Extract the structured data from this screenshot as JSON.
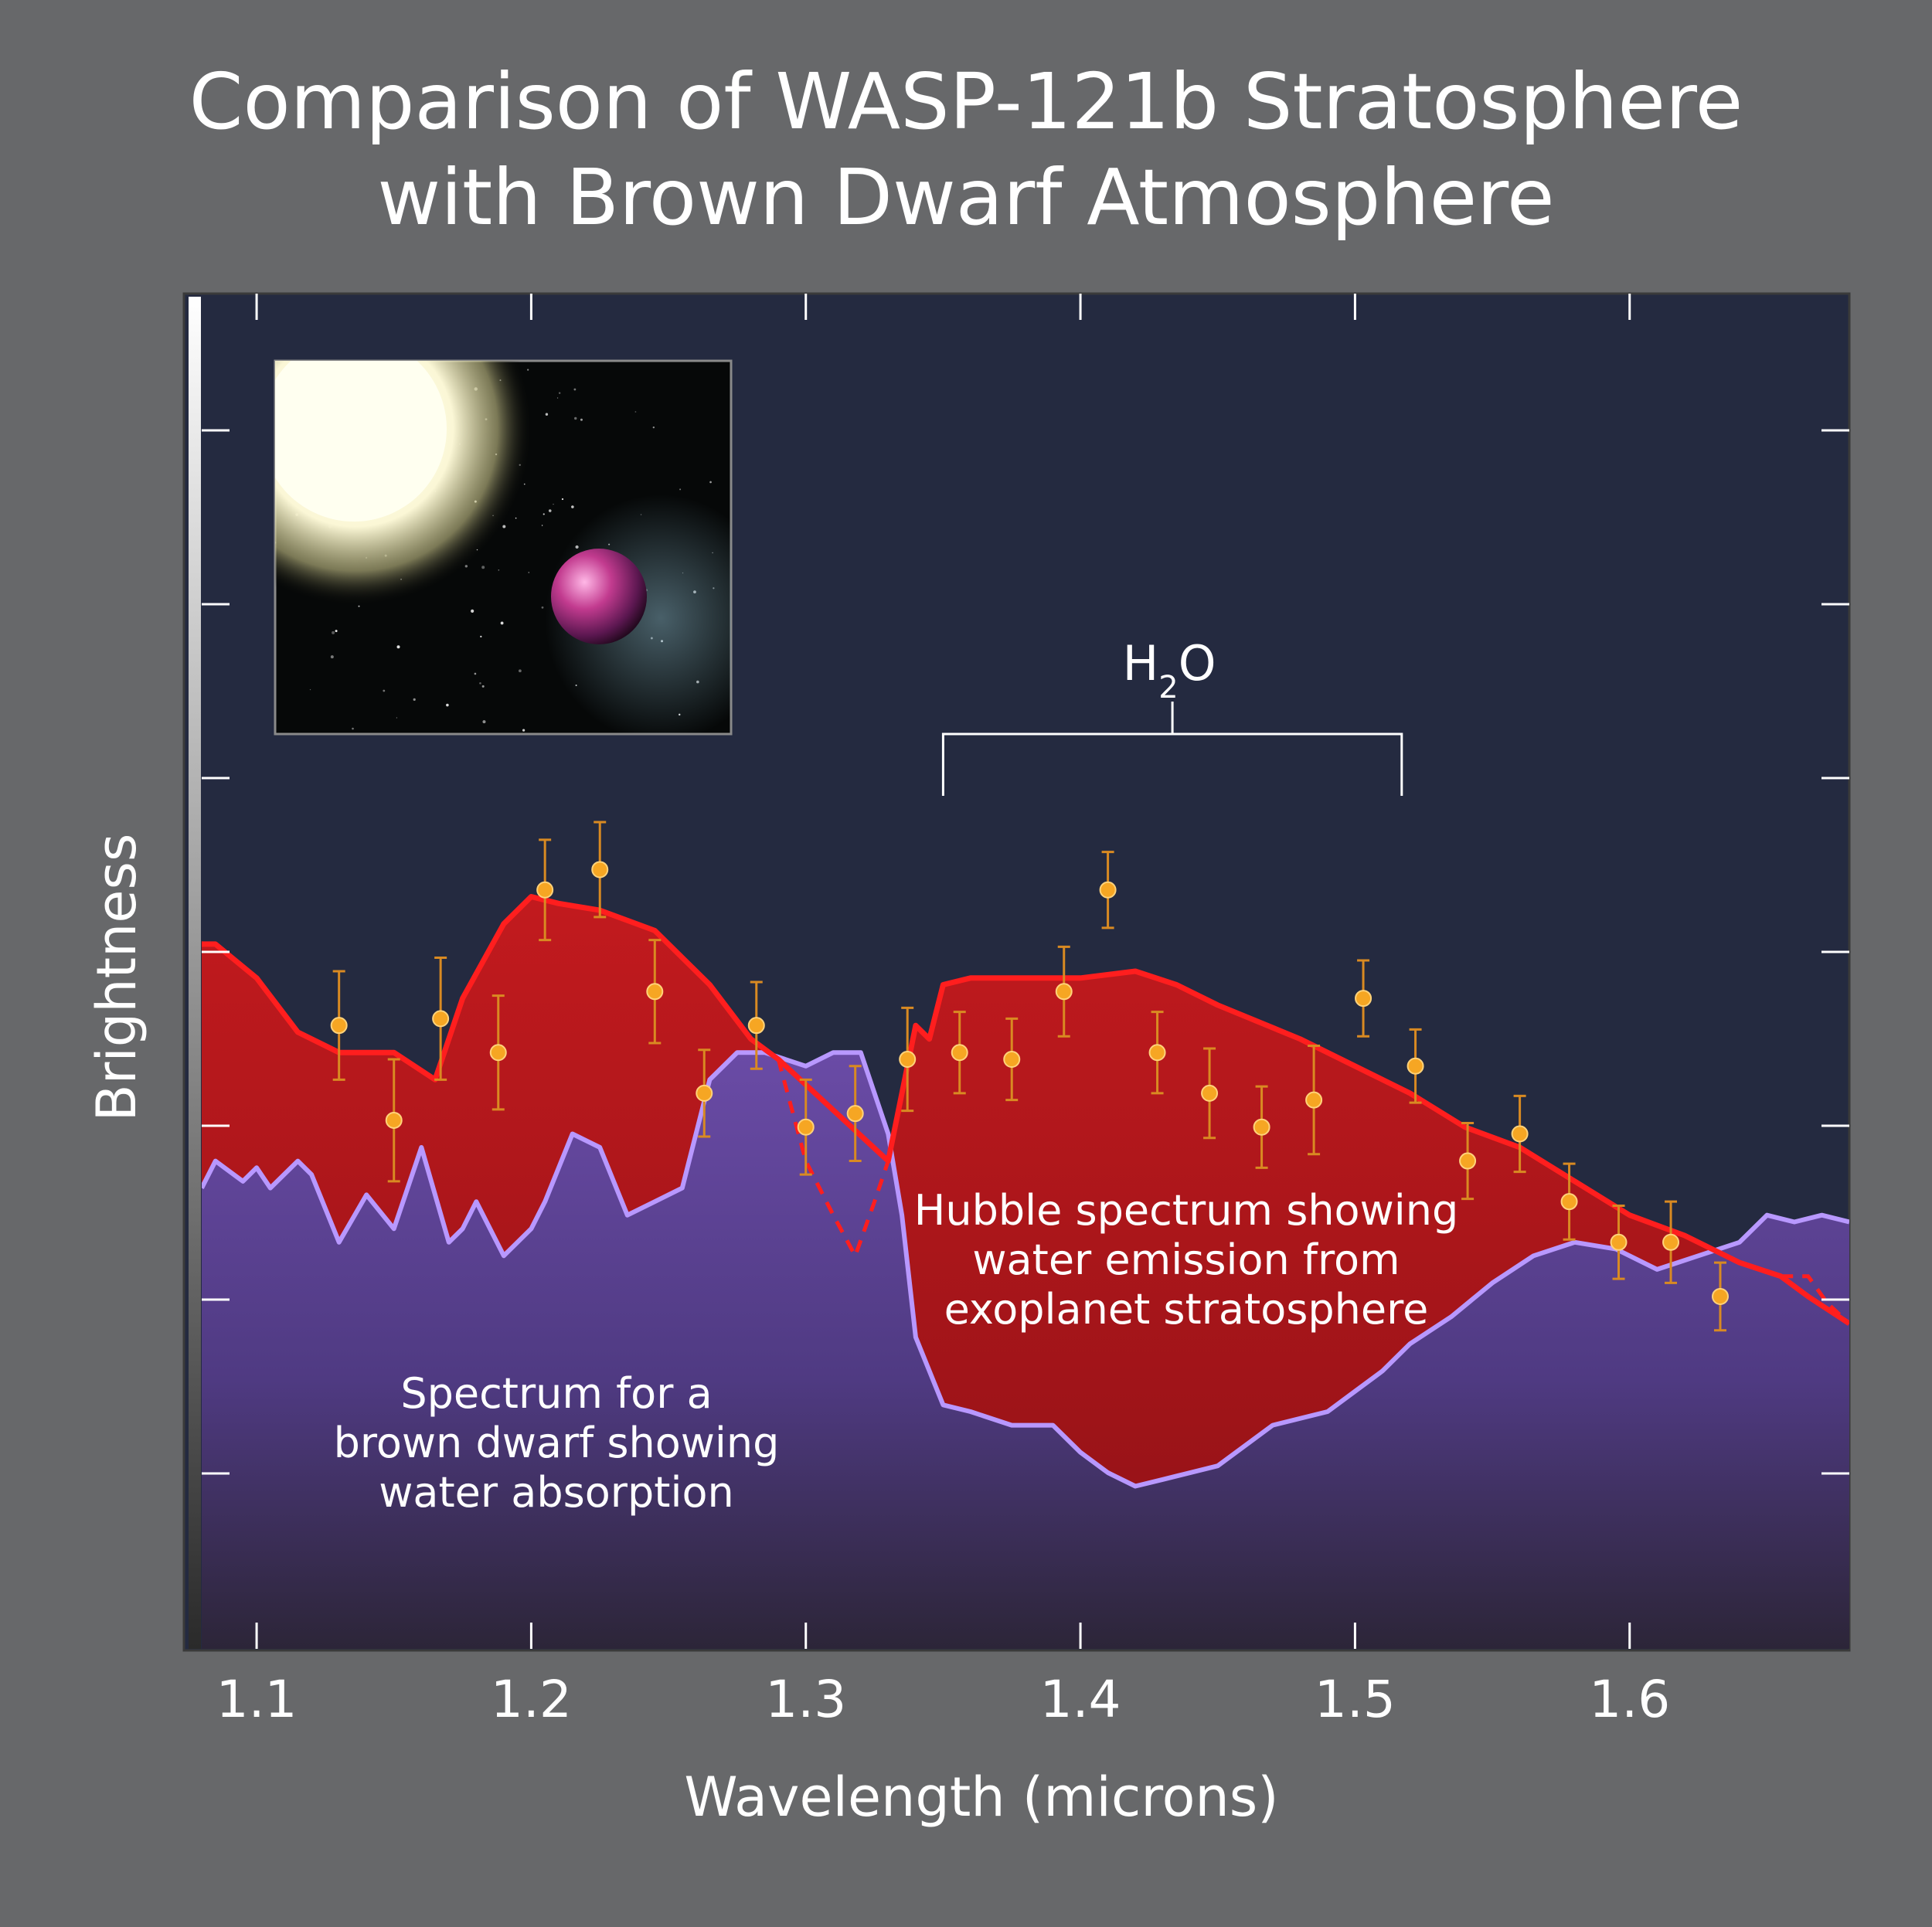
{
  "title_line1": "Comparison of WASP-121b Stratosphere",
  "title_line2": "with Brown Dwarf Atmosphere",
  "colors": {
    "page_bg": "#67686a",
    "plot_bg": "#242a40",
    "exoplanet_fill": "#b01419",
    "exoplanet_line": "#ff1e1e",
    "brown_dwarf_fill": "#5d4595",
    "brown_dwarf_line": "#b898ff",
    "data_point": "#f6a623",
    "error_bar": "#d98a22"
  },
  "chart_data": {
    "type": "area",
    "title": "Comparison of WASP-121b Stratosphere with Brown Dwarf Atmosphere",
    "xlabel": "Wavelength (microns)",
    "ylabel": "Brightness",
    "xlim": [
      1.08,
      1.68
    ],
    "ylim": [
      0,
      10
    ],
    "x_ticks": [
      "1.1",
      "1.2",
      "1.3",
      "1.4",
      "1.5",
      "1.6"
    ],
    "grid": false,
    "annotation": {
      "text_main": "H",
      "text_sub": "2",
      "text_tail": "O",
      "x_start": 1.35,
      "x_end": 1.517
    },
    "labels": {
      "exoplanet": [
        "Hubble spectrum showing",
        "water emission from",
        "exoplanet stratosphere"
      ],
      "brown_dwarf": [
        "Spectrum for a",
        "brown dwarf showing",
        "water absorption"
      ]
    },
    "series": [
      {
        "name": "Hubble spectrum showing water emission from exoplanet stratosphere",
        "style": "filled area, red",
        "x": [
          1.08,
          1.085,
          1.1,
          1.115,
          1.13,
          1.15,
          1.165,
          1.175,
          1.19,
          1.2,
          1.21,
          1.225,
          1.245,
          1.265,
          1.28,
          1.29,
          1.33,
          1.34,
          1.345,
          1.35,
          1.36,
          1.375,
          1.4,
          1.42,
          1.435,
          1.45,
          1.48,
          1.5,
          1.52,
          1.54,
          1.56,
          1.58,
          1.6,
          1.62,
          1.64,
          1.655,
          1.665,
          1.68
        ],
        "y": [
          5.2,
          5.2,
          4.95,
          4.55,
          4.4,
          4.4,
          4.2,
          4.8,
          5.35,
          5.55,
          5.5,
          5.45,
          5.3,
          4.9,
          4.5,
          4.35,
          3.6,
          4.6,
          4.5,
          4.9,
          4.95,
          4.95,
          4.95,
          5.0,
          4.9,
          4.75,
          4.5,
          4.3,
          4.1,
          3.85,
          3.7,
          3.45,
          3.2,
          3.05,
          2.85,
          2.75,
          2.6,
          2.4
        ]
      },
      {
        "name": "Spectrum for a brown dwarf showing water absorption",
        "style": "filled area, purple",
        "x": [
          1.08,
          1.085,
          1.095,
          1.1,
          1.105,
          1.115,
          1.12,
          1.13,
          1.14,
          1.15,
          1.16,
          1.17,
          1.175,
          1.18,
          1.19,
          1.2,
          1.205,
          1.215,
          1.225,
          1.235,
          1.245,
          1.255,
          1.265,
          1.275,
          1.285,
          1.3,
          1.31,
          1.32,
          1.33,
          1.335,
          1.34,
          1.35,
          1.36,
          1.375,
          1.39,
          1.4,
          1.41,
          1.42,
          1.43,
          1.45,
          1.47,
          1.49,
          1.5,
          1.51,
          1.52,
          1.535,
          1.55,
          1.565,
          1.58,
          1.595,
          1.61,
          1.625,
          1.64,
          1.65,
          1.66,
          1.67,
          1.68
        ],
        "y": [
          3.4,
          3.6,
          3.45,
          3.55,
          3.4,
          3.6,
          3.5,
          3.0,
          3.35,
          3.1,
          3.7,
          3.0,
          3.1,
          3.3,
          2.9,
          3.1,
          3.3,
          3.8,
          3.7,
          3.2,
          3.3,
          3.4,
          4.2,
          4.4,
          4.4,
          4.3,
          4.4,
          4.4,
          3.8,
          3.2,
          2.3,
          1.8,
          1.75,
          1.65,
          1.65,
          1.45,
          1.3,
          1.2,
          1.25,
          1.35,
          1.65,
          1.75,
          1.9,
          2.05,
          2.25,
          2.45,
          2.7,
          2.9,
          3.0,
          2.95,
          2.8,
          2.9,
          3.0,
          3.2,
          3.15,
          3.2,
          3.15
        ]
      },
      {
        "name": "",
        "style": "dashed red model segments",
        "segments": [
          {
            "x": [
              1.29,
              1.3,
              1.31,
              1.318,
              1.325,
              1.33
            ],
            "y": [
              4.35,
              3.6,
              3.2,
              2.9,
              3.3,
              3.6
            ]
          },
          {
            "x": [
              1.655,
              1.665,
              1.672,
              1.68
            ],
            "y": [
              2.75,
              2.75,
              2.55,
              2.4
            ]
          }
        ]
      },
      {
        "name": "",
        "style": "orange data points with error bars",
        "x": [
          1.13,
          1.15,
          1.167,
          1.188,
          1.205,
          1.225,
          1.245,
          1.263,
          1.282,
          1.3,
          1.318,
          1.337,
          1.356,
          1.375,
          1.394,
          1.41,
          1.428,
          1.447,
          1.466,
          1.485,
          1.503,
          1.522,
          1.541,
          1.56,
          1.578,
          1.596,
          1.615,
          1.633
        ],
        "y": [
          4.6,
          3.9,
          4.65,
          4.4,
          5.6,
          5.75,
          4.85,
          4.1,
          4.6,
          3.85,
          3.95,
          4.35,
          4.4,
          4.35,
          4.85,
          5.6,
          4.4,
          4.1,
          3.85,
          4.05,
          4.8,
          4.3,
          3.6,
          3.8,
          3.3,
          3.0,
          3.0,
          2.6
        ],
        "err": [
          0.4,
          0.45,
          0.45,
          0.42,
          0.37,
          0.35,
          0.38,
          0.32,
          0.32,
          0.35,
          0.35,
          0.38,
          0.3,
          0.3,
          0.33,
          0.28,
          0.3,
          0.33,
          0.3,
          0.4,
          0.28,
          0.27,
          0.28,
          0.28,
          0.28,
          0.27,
          0.3,
          0.25
        ]
      }
    ]
  },
  "inset_image": {
    "description_icon": "exoplanet-artist-illustration"
  }
}
